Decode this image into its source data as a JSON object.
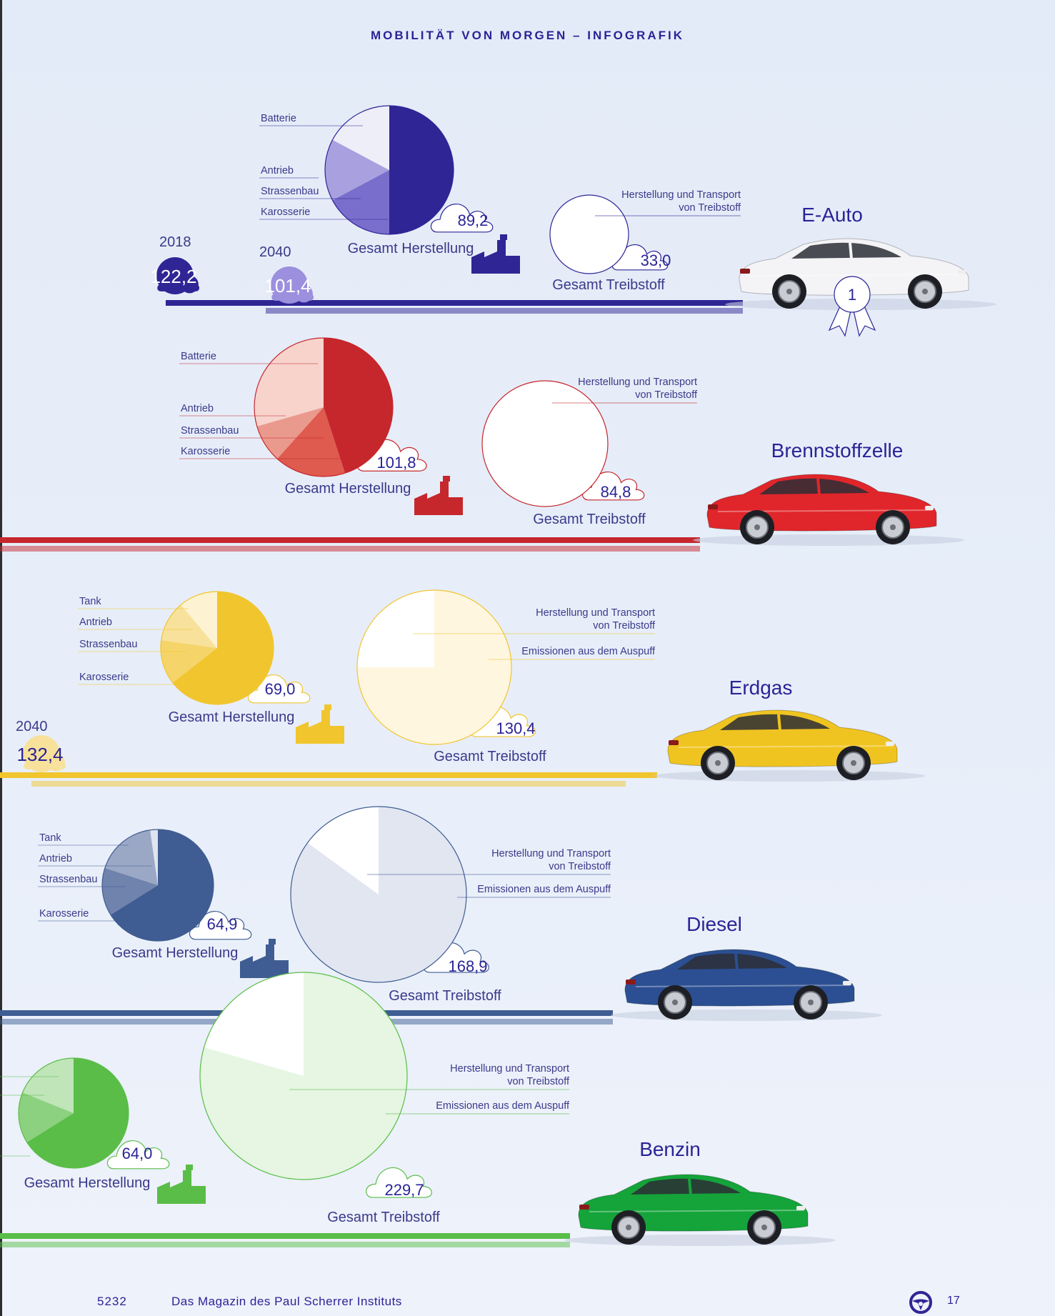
{
  "title": "MOBILITÄT VON MORGEN – INFOGRAFIK",
  "footer": {
    "issue": "5232",
    "magazine": "Das Magazin des Paul Scherrer Instituts",
    "page": "17",
    "icon": "steering-wheel-icon"
  },
  "colors": {
    "e_auto": "#2f2595",
    "brennstoffzelle": "#c6272d",
    "erdgas": "#f1c52e",
    "diesel": "#3f5d92",
    "benzin": "#5abd48"
  },
  "cars": [
    {
      "name": "E-Auto",
      "herstellung": {
        "total": "89,2",
        "label": "Gesamt Herstellung",
        "components": [
          "Batterie",
          "Antrieb",
          "Strassenbau",
          "Karosserie"
        ]
      },
      "treibstoff": {
        "total": "33,0",
        "label": "Gesamt Treibstoff",
        "components": [
          "Herstellung und Transport\nvon Treibstoff"
        ]
      },
      "totals": [
        {
          "year": "2018",
          "value": "122,2"
        },
        {
          "year": "2040",
          "value": "101,4"
        }
      ],
      "rank": "1"
    },
    {
      "name": "Brennstoffzelle",
      "herstellung": {
        "total": "101,8",
        "label": "Gesamt Herstellung",
        "components": [
          "Batterie",
          "Antrieb",
          "Strassenbau",
          "Karosserie"
        ]
      },
      "treibstoff": {
        "total": "84,8",
        "label": "Gesamt Treibstoff",
        "components": [
          "Herstellung und Transport\nvon Treibstoff"
        ]
      }
    },
    {
      "name": "Erdgas",
      "herstellung": {
        "total": "69,0",
        "label": "Gesamt Herstellung",
        "components": [
          "Tank",
          "Antrieb",
          "Strassenbau",
          "Karosserie"
        ]
      },
      "treibstoff": {
        "total": "130,4",
        "label": "Gesamt Treibstoff",
        "components": [
          "Herstellung und Transport\nvon Treibstoff",
          "Emissionen aus dem Auspuff"
        ]
      },
      "totals": [
        {
          "year": "2040",
          "value": "132,4"
        }
      ]
    },
    {
      "name": "Diesel",
      "herstellung": {
        "total": "64,9",
        "label": "Gesamt Herstellung",
        "components": [
          "Tank",
          "Antrieb",
          "Strassenbau",
          "Karosserie"
        ]
      },
      "treibstoff": {
        "total": "168,9",
        "label": "Gesamt Treibstoff",
        "components": [
          "Herstellung und Transport\nvon Treibstoff",
          "Emissionen aus dem Auspuff"
        ]
      }
    },
    {
      "name": "Benzin",
      "herstellung": {
        "total": "64,0",
        "label": "Gesamt Herstellung",
        "components": []
      },
      "treibstoff": {
        "total": "229,7",
        "label": "Gesamt Treibstoff",
        "components": [
          "Herstellung und Transport\nvon Treibstoff",
          "Emissionen aus dem Auspuff"
        ]
      }
    }
  ]
}
